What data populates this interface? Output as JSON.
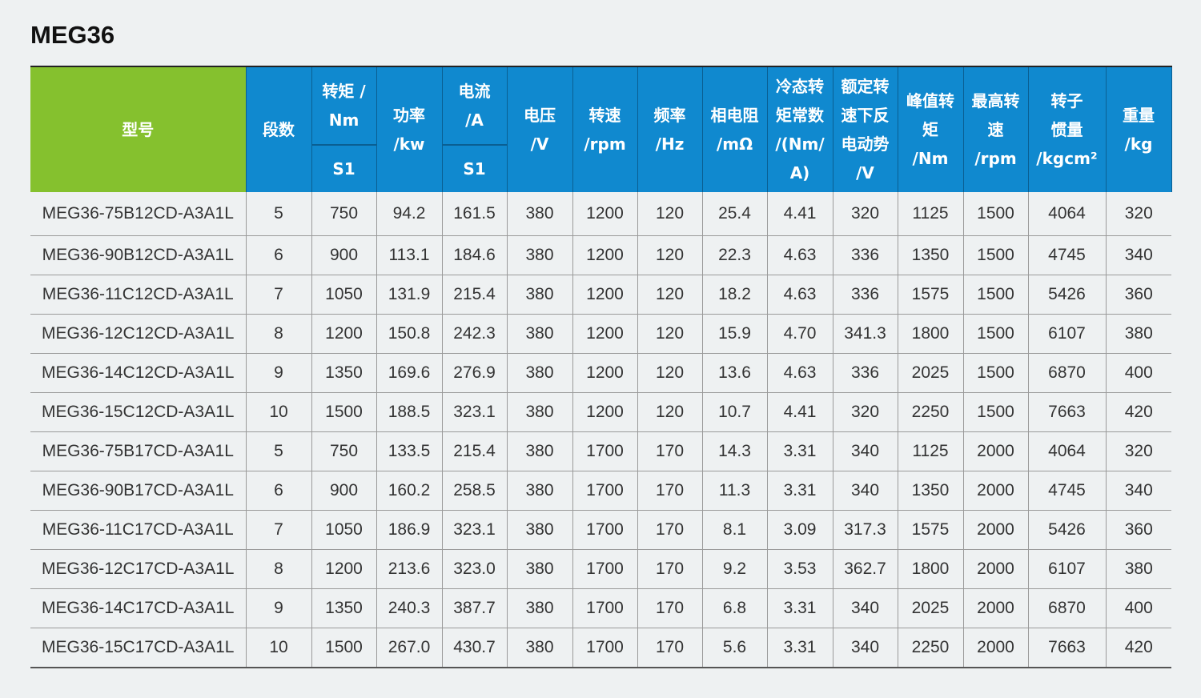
{
  "title": "MEG36",
  "colors": {
    "header_blue": "#1089cf",
    "header_green": "#85c12e",
    "background": "#eef1f2"
  },
  "headers": {
    "model": "型号",
    "segments": "段数",
    "torque": "转矩 /\nNm",
    "torque_sub": "S1",
    "power": "功率\n/kw",
    "current": "电流\n/A",
    "current_sub": "S1",
    "voltage": "电压\n/V",
    "speed": "转速\n/rpm",
    "frequency": "频率\n/Hz",
    "resistance": "相电阻\n/mΩ",
    "torque_const": "冷态转\n矩常数\n/(Nm/\nA)",
    "back_emf": "额定转\n速下反\n电动势\n/V",
    "peak_torque": "峰值转\n矩\n/Nm",
    "max_speed": "最高转\n速\n/rpm",
    "inertia": "转子\n惯量\n/kgcm²",
    "weight": "重量\n/kg"
  },
  "rows": [
    [
      "MEG36-75B12CD-A3A1L",
      "5",
      "750",
      "94.2",
      "161.5",
      "380",
      "1200",
      "120",
      "25.4",
      "4.41",
      "320",
      "1125",
      "1500",
      "4064",
      "320"
    ],
    [
      "MEG36-90B12CD-A3A1L",
      "6",
      "900",
      "113.1",
      "184.6",
      "380",
      "1200",
      "120",
      "22.3",
      "4.63",
      "336",
      "1350",
      "1500",
      "4745",
      "340"
    ],
    [
      "MEG36-11C12CD-A3A1L",
      "7",
      "1050",
      "131.9",
      "215.4",
      "380",
      "1200",
      "120",
      "18.2",
      "4.63",
      "336",
      "1575",
      "1500",
      "5426",
      "360"
    ],
    [
      "MEG36-12C12CD-A3A1L",
      "8",
      "1200",
      "150.8",
      "242.3",
      "380",
      "1200",
      "120",
      "15.9",
      "4.70",
      "341.3",
      "1800",
      "1500",
      "6107",
      "380"
    ],
    [
      "MEG36-14C12CD-A3A1L",
      "9",
      "1350",
      "169.6",
      "276.9",
      "380",
      "1200",
      "120",
      "13.6",
      "4.63",
      "336",
      "2025",
      "1500",
      "6870",
      "400"
    ],
    [
      "MEG36-15C12CD-A3A1L",
      "10",
      "1500",
      "188.5",
      "323.1",
      "380",
      "1200",
      "120",
      "10.7",
      "4.41",
      "320",
      "2250",
      "1500",
      "7663",
      "420"
    ],
    [
      "MEG36-75B17CD-A3A1L",
      "5",
      "750",
      "133.5",
      "215.4",
      "380",
      "1700",
      "170",
      "14.3",
      "3.31",
      "340",
      "1125",
      "2000",
      "4064",
      "320"
    ],
    [
      "MEG36-90B17CD-A3A1L",
      "6",
      "900",
      "160.2",
      "258.5",
      "380",
      "1700",
      "170",
      "11.3",
      "3.31",
      "340",
      "1350",
      "2000",
      "4745",
      "340"
    ],
    [
      "MEG36-11C17CD-A3A1L",
      "7",
      "1050",
      "186.9",
      "323.1",
      "380",
      "1700",
      "170",
      "8.1",
      "3.09",
      "317.3",
      "1575",
      "2000",
      "5426",
      "360"
    ],
    [
      "MEG36-12C17CD-A3A1L",
      "8",
      "1200",
      "213.6",
      "323.0",
      "380",
      "1700",
      "170",
      "9.2",
      "3.53",
      "362.7",
      "1800",
      "2000",
      "6107",
      "380"
    ],
    [
      "MEG36-14C17CD-A3A1L",
      "9",
      "1350",
      "240.3",
      "387.7",
      "380",
      "1700",
      "170",
      "6.8",
      "3.31",
      "340",
      "2025",
      "2000",
      "6870",
      "400"
    ],
    [
      "MEG36-15C17CD-A3A1L",
      "10",
      "1500",
      "267.0",
      "430.7",
      "380",
      "1700",
      "170",
      "5.6",
      "3.31",
      "340",
      "2250",
      "2000",
      "7663",
      "420"
    ]
  ]
}
